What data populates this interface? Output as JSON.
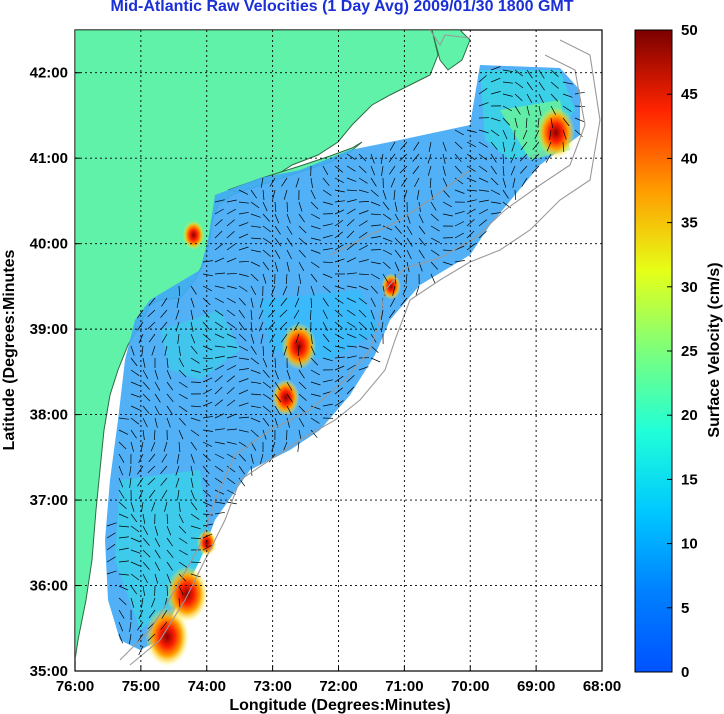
{
  "title": "Mid-Atlantic Raw Velocities (1 Day Avg) 2009/01/30 1800 GMT",
  "x_label": "Longitude (Degrees:Minutes)",
  "y_label": "Latitude (Degrees:Minutes",
  "colorbar_label": "Surface Velocity (cm/s)",
  "x_ticks": [
    "76:00",
    "75:00",
    "74:00",
    "73:00",
    "72:00",
    "71:00",
    "70:00",
    "69:00",
    "68:00"
  ],
  "y_ticks": [
    "42:00",
    "41:00",
    "40:00",
    "39:00",
    "38:00",
    "37:00",
    "36:00",
    "35:00"
  ],
  "colorbar_ticks": [
    "50",
    "45",
    "40",
    "35",
    "30",
    "25",
    "20",
    "15",
    "10",
    "5",
    "0"
  ],
  "colors": {
    "title": "#1a2fd6",
    "land": "#5ff2a8",
    "coast": "#2f6b45",
    "bathymetry": "#9a9a9a",
    "grid": "#000000",
    "arrows": "#000000",
    "data_fill_base": "#42a9f5"
  },
  "chart_data": {
    "type": "heatmap",
    "map_extent": {
      "lon": [
        -76,
        -68
      ],
      "lat": [
        35,
        42.5
      ]
    },
    "colormap": "jet",
    "clim": [
      0,
      50
    ],
    "units": "cm/s",
    "grid": true,
    "colorbar_position": "right",
    "hot_spots": [
      {
        "lon": -68.7,
        "lat": 41.3,
        "speed": 45
      },
      {
        "lon": -74.6,
        "lat": 35.4,
        "speed": 50
      },
      {
        "lon": -74.3,
        "lat": 35.9,
        "speed": 48
      },
      {
        "lon": -72.6,
        "lat": 38.8,
        "speed": 42
      },
      {
        "lon": -72.8,
        "lat": 38.2,
        "speed": 35
      },
      {
        "lon": -74.0,
        "lat": 36.5,
        "speed": 28
      },
      {
        "lon": -74.2,
        "lat": 40.1,
        "speed": 30
      },
      {
        "lon": -71.2,
        "lat": 39.5,
        "speed": 28
      }
    ]
  }
}
